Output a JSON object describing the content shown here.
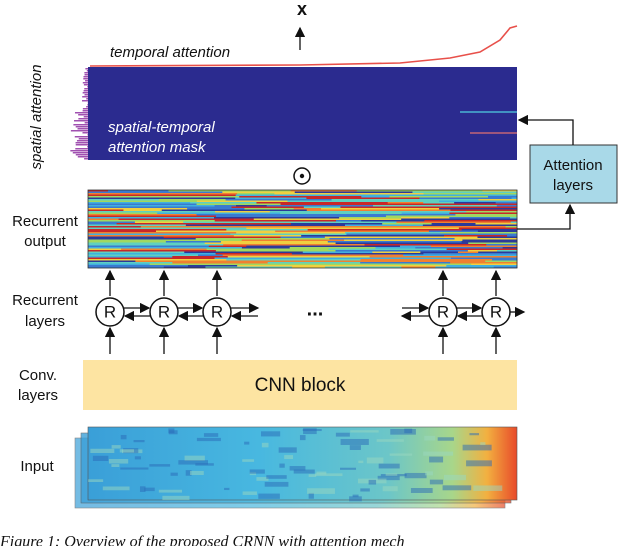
{
  "output_label": "x",
  "temporal_attention": "temporal attention",
  "spatial_attention": "spatial attention",
  "mask_label": [
    "spatial-temporal",
    "attention mask"
  ],
  "attention_layers": [
    "Attention",
    "layers"
  ],
  "row_labels": [
    [
      "Recurrent",
      "output"
    ],
    [
      "Recurrent",
      "layers"
    ],
    [
      "Conv.",
      "layers"
    ],
    [
      "Input"
    ]
  ],
  "recurrent_units": [
    "R",
    "R",
    "R",
    "R",
    "R"
  ],
  "ellipsis": "...",
  "cnn_block": "CNN block",
  "caption": "Figure 1: Overview of the proposed CRNN with attention mech"
}
